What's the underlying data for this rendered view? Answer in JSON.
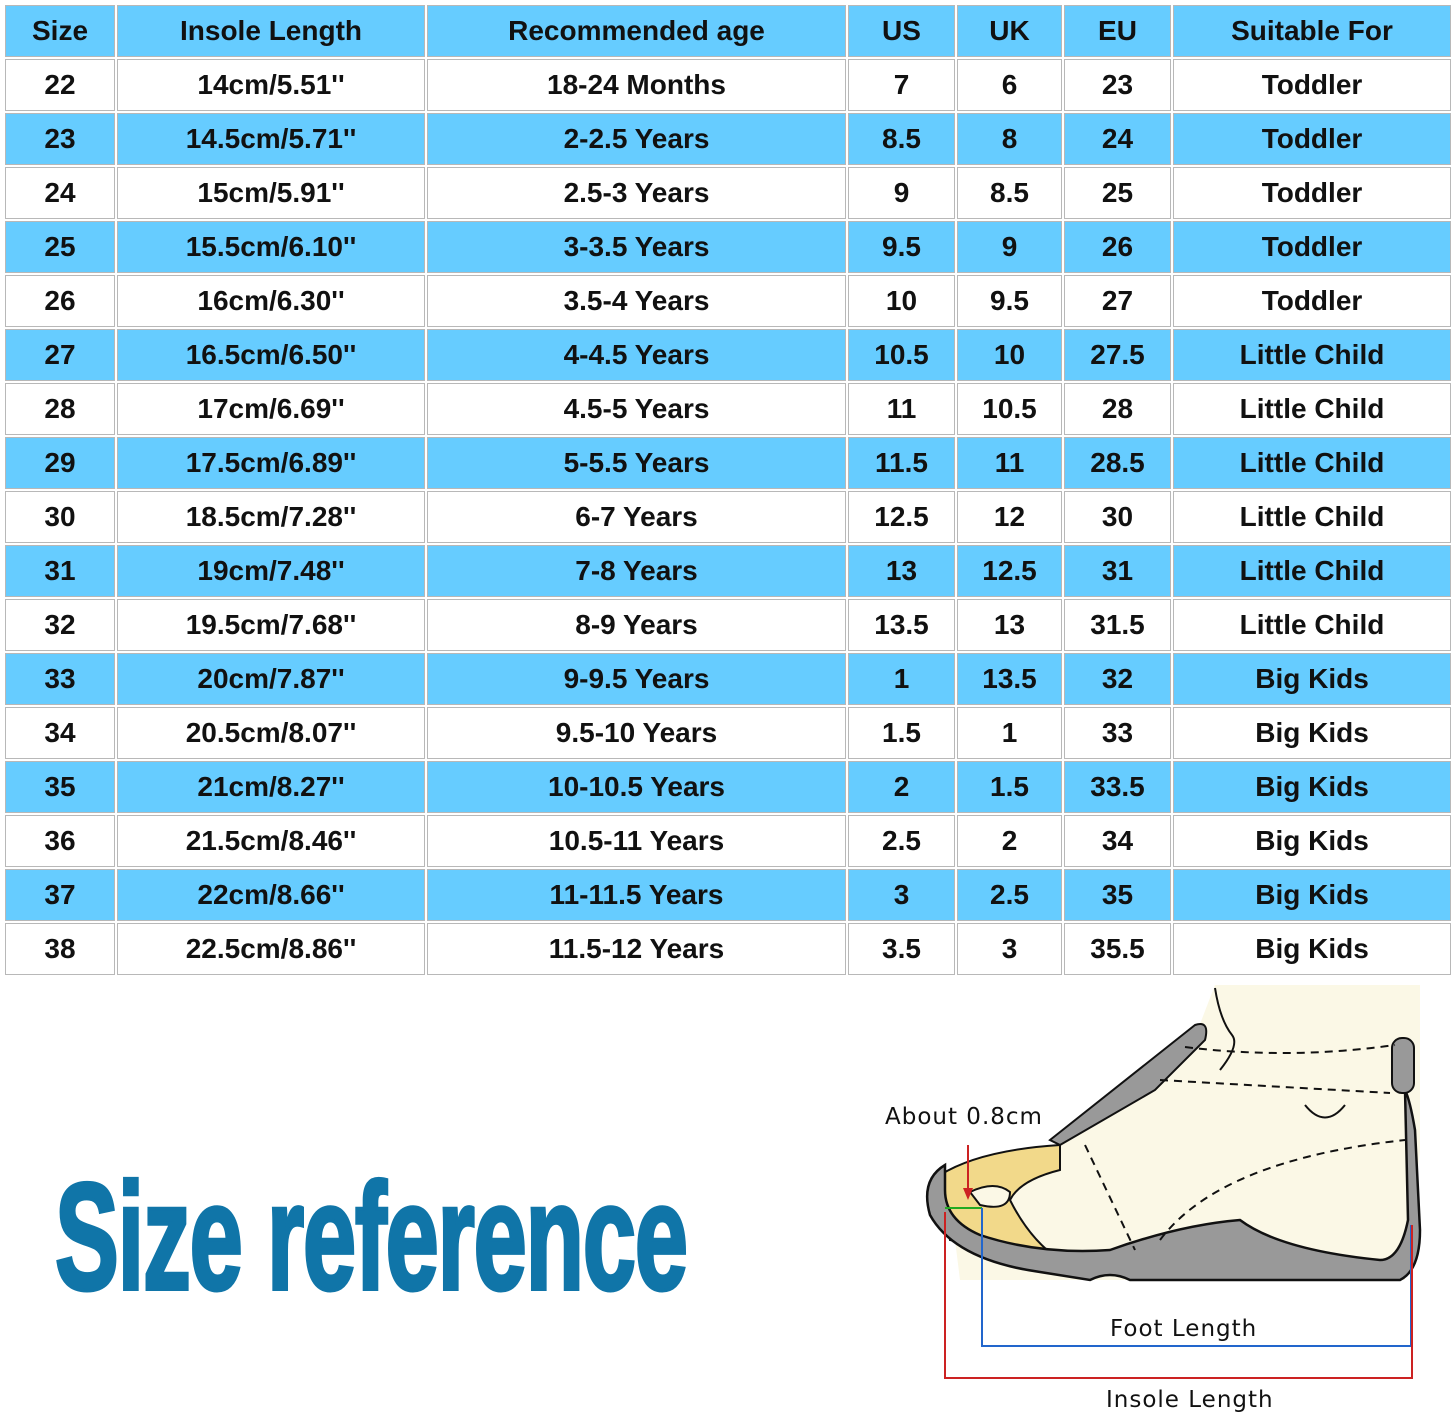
{
  "table": {
    "headers": [
      "Size",
      "Insole Length",
      "Recommended age",
      "US",
      "UK",
      "EU",
      "Suitable For"
    ],
    "rows": [
      [
        "22",
        "14cm/5.51''",
        "18-24 Months",
        "7",
        "6",
        "23",
        "Toddler"
      ],
      [
        "23",
        "14.5cm/5.71''",
        "2-2.5 Years",
        "8.5",
        "8",
        "24",
        "Toddler"
      ],
      [
        "24",
        "15cm/5.91''",
        "2.5-3 Years",
        "9",
        "8.5",
        "25",
        "Toddler"
      ],
      [
        "25",
        "15.5cm/6.10''",
        "3-3.5 Years",
        "9.5",
        "9",
        "26",
        "Toddler"
      ],
      [
        "26",
        "16cm/6.30''",
        "3.5-4 Years",
        "10",
        "9.5",
        "27",
        "Toddler"
      ],
      [
        "27",
        "16.5cm/6.50''",
        "4-4.5 Years",
        "10.5",
        "10",
        "27.5",
        "Little Child"
      ],
      [
        "28",
        "17cm/6.69''",
        "4.5-5 Years",
        "11",
        "10.5",
        "28",
        "Little Child"
      ],
      [
        "29",
        "17.5cm/6.89''",
        "5-5.5 Years",
        "11.5",
        "11",
        "28.5",
        "Little Child"
      ],
      [
        "30",
        "18.5cm/7.28''",
        "6-7 Years",
        "12.5",
        "12",
        "30",
        "Little Child"
      ],
      [
        "31",
        "19cm/7.48''",
        "7-8 Years",
        "13",
        "12.5",
        "31",
        "Little Child"
      ],
      [
        "32",
        "19.5cm/7.68''",
        "8-9 Years",
        "13.5",
        "13",
        "31.5",
        "Little Child"
      ],
      [
        "33",
        "20cm/7.87''",
        "9-9.5 Years",
        "1",
        "13.5",
        "32",
        "Big Kids"
      ],
      [
        "34",
        "20.5cm/8.07''",
        "9.5-10 Years",
        "1.5",
        "1",
        "33",
        "Big Kids"
      ],
      [
        "35",
        "21cm/8.27''",
        "10-10.5 Years",
        "2",
        "1.5",
        "33.5",
        "Big Kids"
      ],
      [
        "36",
        "21.5cm/8.46''",
        "10.5-11 Years",
        "2.5",
        "2",
        "34",
        "Big Kids"
      ],
      [
        "37",
        "22cm/8.66''",
        "11-11.5 Years",
        "3",
        "2.5",
        "35",
        "Big Kids"
      ],
      [
        "38",
        "22.5cm/8.86''",
        "11.5-12 Years",
        "3.5",
        "3",
        "35.5",
        "Big Kids"
      ]
    ]
  },
  "title": "Size reference",
  "diagram": {
    "toe_gap_label": "About 0.8cm",
    "foot_length_label": "Foot Length",
    "insole_length_label": "Insole Length"
  },
  "colors": {
    "header_blue": "#66ccff",
    "title_blue": "#1075a8",
    "insole_line": "#cc2222",
    "foot_line": "#2266cc"
  }
}
